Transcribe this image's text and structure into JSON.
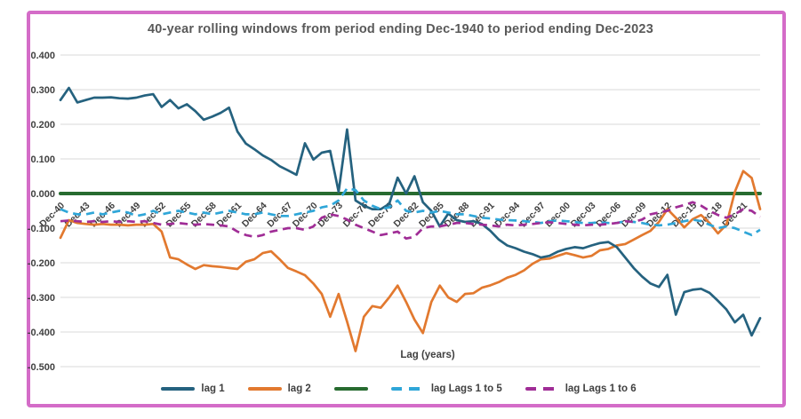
{
  "frame": {
    "border_color": "#d46cc8",
    "background": "#ffffff"
  },
  "chart_data": {
    "type": "line",
    "title": "40-year rolling windows from period ending Dec-1940 to period ending Dec-2023",
    "xlabel": "Lag (years)",
    "ylabel": "",
    "ylim": [
      -0.5,
      0.4
    ],
    "grid": true,
    "legend_position": "bottom",
    "x_start_year": 1940,
    "x_end_year": 2023,
    "x_step_years": 1,
    "y_tick_labels": [
      "0.400",
      "0.300",
      "0.200",
      "0.100",
      "0.000",
      "-0.100",
      "-0.200",
      "-0.300",
      "-0.400",
      "-0.500"
    ],
    "x_tick_labels": [
      "Dec-40",
      "Dec-43",
      "Dec-46",
      "Dec-49",
      "Dec-52",
      "Dec-55",
      "Dec-58",
      "Dec-61",
      "Dec-64",
      "Dec-67",
      "Dec-70",
      "Dec-73",
      "Dec-76",
      "Dec-79",
      "Dec-82",
      "Dec-85",
      "Dec-88",
      "Dec-91",
      "Dec-94",
      "Dec-97",
      "Dec-00",
      "Dec-03",
      "Dec-06",
      "Dec-09",
      "Dec-12",
      "Dec-15",
      "Dec-18",
      "Dec-21"
    ],
    "colors": {
      "gridline": "#d9d9d9",
      "tick_text": "#404040",
      "title_text": "#595959"
    },
    "series": [
      {
        "name": "lag 1",
        "color": "#25627f",
        "dash": false,
        "values": [
          0.27,
          0.305,
          0.263,
          0.27,
          0.277,
          0.277,
          0.278,
          0.275,
          0.274,
          0.277,
          0.283,
          0.287,
          0.25,
          0.27,
          0.246,
          0.258,
          0.238,
          0.213,
          0.222,
          0.233,
          0.248,
          0.179,
          0.144,
          0.128,
          0.11,
          0.097,
          0.079,
          0.067,
          0.054,
          0.145,
          0.098,
          0.118,
          0.123,
          0.005,
          0.185,
          -0.02,
          -0.035,
          -0.045,
          -0.045,
          -0.03,
          0.046,
          0.0,
          0.05,
          -0.025,
          -0.05,
          -0.095,
          -0.058,
          -0.077,
          -0.082,
          -0.08,
          -0.088,
          -0.108,
          -0.133,
          -0.15,
          -0.158,
          -0.168,
          -0.175,
          -0.185,
          -0.18,
          -0.168,
          -0.16,
          -0.155,
          -0.158,
          -0.15,
          -0.143,
          -0.14,
          -0.155,
          -0.185,
          -0.215,
          -0.24,
          -0.26,
          -0.27,
          -0.235,
          -0.35,
          -0.285,
          -0.278,
          -0.275,
          -0.287,
          -0.31,
          -0.335,
          -0.372,
          -0.35,
          -0.41,
          -0.36
        ]
      },
      {
        "name": "lag 2",
        "color": "#e2792f",
        "dash": false,
        "values": [
          -0.128,
          -0.077,
          -0.085,
          -0.088,
          -0.09,
          -0.088,
          -0.09,
          -0.09,
          -0.092,
          -0.09,
          -0.09,
          -0.088,
          -0.11,
          -0.185,
          -0.19,
          -0.205,
          -0.218,
          -0.207,
          -0.21,
          -0.212,
          -0.215,
          -0.218,
          -0.197,
          -0.19,
          -0.172,
          -0.167,
          -0.19,
          -0.215,
          -0.225,
          -0.236,
          -0.26,
          -0.29,
          -0.356,
          -0.29,
          -0.37,
          -0.455,
          -0.356,
          -0.325,
          -0.33,
          -0.3,
          -0.266,
          -0.313,
          -0.364,
          -0.403,
          -0.313,
          -0.266,
          -0.3,
          -0.313,
          -0.29,
          -0.288,
          -0.272,
          -0.265,
          -0.256,
          -0.243,
          -0.235,
          -0.222,
          -0.203,
          -0.19,
          -0.188,
          -0.18,
          -0.172,
          -0.178,
          -0.185,
          -0.18,
          -0.164,
          -0.16,
          -0.15,
          -0.146,
          -0.133,
          -0.12,
          -0.108,
          -0.082,
          -0.045,
          -0.07,
          -0.098,
          -0.074,
          -0.062,
          -0.085,
          -0.115,
          -0.09,
          0.005,
          0.065,
          0.045,
          -0.045
        ]
      },
      {
        "name": "",
        "color": "#276b30",
        "dash": false,
        "values": [
          0,
          0,
          0,
          0,
          0,
          0,
          0,
          0,
          0,
          0,
          0,
          0,
          0,
          0,
          0,
          0,
          0,
          0,
          0,
          0,
          0,
          0,
          0,
          0,
          0,
          0,
          0,
          0,
          0,
          0,
          0,
          0,
          0,
          0,
          0,
          0,
          0,
          0,
          0,
          0,
          0,
          0,
          0,
          0,
          0,
          0,
          0,
          0,
          0,
          0,
          0,
          0,
          0,
          0,
          0,
          0,
          0,
          0,
          0,
          0,
          0,
          0,
          0,
          0,
          0,
          0,
          0,
          0,
          0,
          0,
          0,
          0,
          0,
          0,
          0,
          0,
          0,
          0,
          0,
          0,
          0,
          0,
          0,
          0
        ]
      },
      {
        "name": "lag Lags 1 to 5",
        "color": "#2fa6d8",
        "dash": true,
        "values": [
          -0.045,
          -0.055,
          -0.06,
          -0.06,
          -0.055,
          -0.06,
          -0.055,
          -0.05,
          -0.055,
          -0.065,
          -0.06,
          -0.05,
          -0.06,
          -0.055,
          -0.05,
          -0.055,
          -0.06,
          -0.055,
          -0.06,
          -0.055,
          -0.05,
          -0.055,
          -0.06,
          -0.06,
          -0.055,
          -0.06,
          -0.065,
          -0.065,
          -0.06,
          -0.055,
          -0.05,
          -0.04,
          -0.035,
          -0.02,
          0.015,
          0.01,
          -0.02,
          -0.035,
          -0.045,
          -0.04,
          -0.02,
          -0.05,
          -0.055,
          -0.05,
          -0.055,
          -0.05,
          -0.055,
          -0.06,
          -0.06,
          -0.065,
          -0.07,
          -0.072,
          -0.075,
          -0.077,
          -0.078,
          -0.08,
          -0.082,
          -0.085,
          -0.08,
          -0.078,
          -0.08,
          -0.082,
          -0.085,
          -0.085,
          -0.083,
          -0.085,
          -0.085,
          -0.08,
          -0.082,
          -0.085,
          -0.09,
          -0.092,
          -0.09,
          -0.085,
          -0.08,
          -0.075,
          -0.08,
          -0.09,
          -0.1,
          -0.095,
          -0.1,
          -0.11,
          -0.12,
          -0.105
        ]
      },
      {
        "name": "lag Lags 1 to 6",
        "color": "#a02d96",
        "dash": true,
        "values": [
          -0.08,
          -0.078,
          -0.08,
          -0.082,
          -0.08,
          -0.082,
          -0.08,
          -0.082,
          -0.08,
          -0.082,
          -0.08,
          -0.085,
          -0.09,
          -0.088,
          -0.085,
          -0.088,
          -0.09,
          -0.088,
          -0.09,
          -0.092,
          -0.095,
          -0.11,
          -0.12,
          -0.125,
          -0.12,
          -0.11,
          -0.105,
          -0.1,
          -0.1,
          -0.105,
          -0.095,
          -0.07,
          -0.06,
          -0.065,
          -0.075,
          -0.09,
          -0.1,
          -0.11,
          -0.12,
          -0.115,
          -0.11,
          -0.13,
          -0.125,
          -0.1,
          -0.095,
          -0.095,
          -0.09,
          -0.085,
          -0.085,
          -0.088,
          -0.09,
          -0.092,
          -0.095,
          -0.09,
          -0.092,
          -0.09,
          -0.088,
          -0.085,
          -0.083,
          -0.085,
          -0.088,
          -0.09,
          -0.092,
          -0.09,
          -0.09,
          -0.088,
          -0.085,
          -0.08,
          -0.082,
          -0.075,
          -0.06,
          -0.055,
          -0.05,
          -0.04,
          -0.033,
          -0.025,
          -0.035,
          -0.05,
          -0.062,
          -0.07,
          -0.06,
          -0.045,
          -0.05,
          -0.068
        ]
      }
    ]
  }
}
